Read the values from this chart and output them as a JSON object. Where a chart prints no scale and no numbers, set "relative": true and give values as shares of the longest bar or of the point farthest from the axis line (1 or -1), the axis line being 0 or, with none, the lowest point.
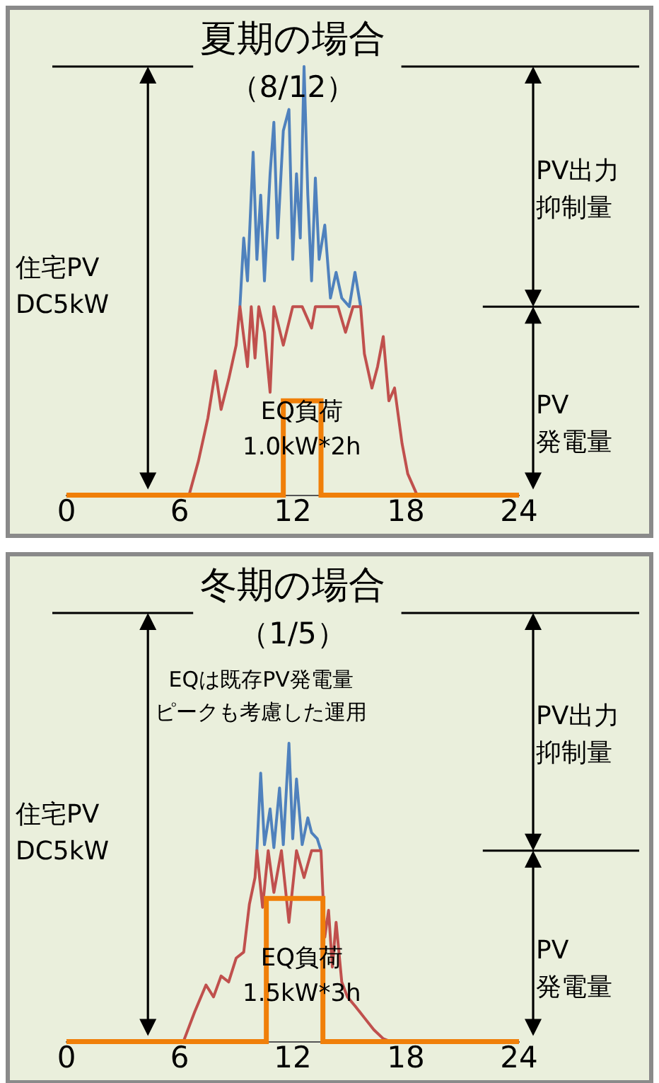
{
  "chart_data": [
    {
      "type": "line",
      "title": "夏期の場合",
      "subtitle": "（8/12）",
      "relative": true,
      "xlim": [
        0,
        24
      ],
      "xticks": [
        0,
        6,
        12,
        18,
        24
      ],
      "grid": false,
      "tick_labels": "x",
      "annotations": [
        "住宅PV",
        "DC5kW",
        "PV出力",
        "抑制量",
        "PV",
        "発電量",
        "EQ負荷",
        "1.0kW*2h"
      ],
      "series": [
        {
          "color": "#4f81bd",
          "x": [
            9.2,
            9.4,
            9.6,
            9.9,
            10.1,
            10.3,
            10.5,
            10.8,
            11.0,
            11.2,
            11.5,
            11.8,
            12.0,
            12.2,
            12.4,
            12.6,
            12.8,
            13.0,
            13.2,
            13.4,
            13.7,
            14.0,
            14.3,
            14.6,
            15.0,
            15.3,
            15.6
          ],
          "values": [
            0.44,
            0.6,
            0.5,
            0.8,
            0.55,
            0.7,
            0.5,
            0.75,
            0.87,
            0.6,
            0.85,
            0.9,
            0.55,
            0.75,
            0.6,
            1.0,
            0.7,
            0.5,
            0.74,
            0.55,
            0.63,
            0.46,
            0.52,
            0.46,
            0.44,
            0.52,
            0.44
          ]
        },
        {
          "color": "#c0504d",
          "x": [
            6.5,
            7.0,
            7.5,
            7.9,
            8.2,
            8.6,
            9.0,
            9.2,
            9.6,
            9.8,
            10.0,
            10.2,
            10.5,
            10.8,
            11.0,
            11.5,
            12.0,
            12.5,
            13.0,
            13.2,
            14.0,
            14.4,
            14.8,
            15.2,
            15.6,
            15.8,
            16.2,
            16.5,
            16.8,
            17.1,
            17.4,
            17.8,
            18.1,
            18.6
          ],
          "values": [
            0,
            0.08,
            0.18,
            0.29,
            0.2,
            0.27,
            0.35,
            0.44,
            0.3,
            0.44,
            0.32,
            0.44,
            0.38,
            0.24,
            0.44,
            0.35,
            0.44,
            0.44,
            0.39,
            0.44,
            0.44,
            0.44,
            0.38,
            0.44,
            0.44,
            0.33,
            0.25,
            0.3,
            0.37,
            0.22,
            0.25,
            0.12,
            0.05,
            0
          ]
        },
        {
          "type": "step",
          "color": "#f07f09",
          "x": [
            0,
            11.5,
            13.5,
            24
          ],
          "values": [
            0,
            0.22,
            0,
            0
          ]
        }
      ]
    },
    {
      "type": "line",
      "title": "冬期の場合",
      "subtitle": "（1/5）",
      "relative": true,
      "xlim": [
        0,
        24
      ],
      "xticks": [
        0,
        6,
        12,
        18,
        24
      ],
      "grid": false,
      "tick_labels": "x",
      "annotations": [
        "住宅PV",
        "DC5kW",
        "PV出力",
        "抑制量",
        "PV",
        "発電量",
        "EQ負荷",
        "1.5kW*3h",
        "EQは既存PV発電量",
        "ピークも考慮した運用"
      ],
      "series": [
        {
          "color": "#4f81bd",
          "x": [
            10.1,
            10.3,
            10.5,
            10.8,
            11.0,
            11.3,
            11.5,
            11.8,
            12.0,
            12.2,
            12.5,
            12.8,
            13.0,
            13.3,
            13.5
          ],
          "values": [
            0.64,
            0.9,
            0.66,
            0.78,
            0.65,
            0.85,
            0.66,
            1.0,
            0.68,
            0.88,
            0.66,
            0.75,
            0.7,
            0.68,
            0.64
          ]
        },
        {
          "color": "#c0504d",
          "x": [
            6.2,
            6.8,
            7.4,
            7.8,
            8.2,
            8.6,
            9.0,
            9.4,
            9.7,
            10.0,
            10.1,
            10.4,
            10.7,
            11.0,
            11.4,
            11.8,
            12.2,
            12.6,
            13.0,
            13.5,
            13.7,
            13.9,
            14.1,
            14.3,
            14.6,
            14.9,
            15.3,
            15.8,
            16.3,
            16.8,
            17.2
          ],
          "values": [
            0,
            0.1,
            0.19,
            0.15,
            0.22,
            0.2,
            0.28,
            0.3,
            0.46,
            0.55,
            0.64,
            0.45,
            0.64,
            0.5,
            0.64,
            0.4,
            0.64,
            0.55,
            0.64,
            0.64,
            0.35,
            0.44,
            0.25,
            0.4,
            0.2,
            0.15,
            0.12,
            0.08,
            0.04,
            0.01,
            0
          ]
        },
        {
          "type": "step",
          "color": "#f07f09",
          "x": [
            0,
            10.6,
            13.6,
            24
          ],
          "values": [
            0,
            0.48,
            0,
            0
          ]
        }
      ]
    }
  ]
}
